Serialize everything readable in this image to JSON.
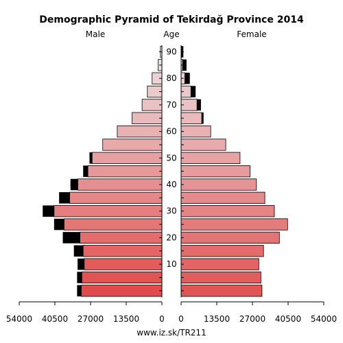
{
  "chart_data": {
    "type": "bar",
    "title": "Demographic Pyramid of Tekirdağ Province 2014",
    "left_label": "Male",
    "center_label": "Age",
    "right_label": "Female",
    "footer": "www.iz.sk/TR211",
    "age_groups": [
      "0-4",
      "5-9",
      "10-14",
      "15-19",
      "20-24",
      "25-29",
      "30-34",
      "35-39",
      "40-44",
      "45-49",
      "50-54",
      "55-59",
      "60-64",
      "65-69",
      "70-74",
      "75-79",
      "80-84",
      "85-89",
      "90+"
    ],
    "age_ticks": [
      "10",
      "20",
      "30",
      "40",
      "50",
      "60",
      "70",
      "80",
      "90"
    ],
    "x_ticks": [
      "54000",
      "40500",
      "27000",
      "13500",
      "0",
      "0",
      "13500",
      "27000",
      "40500",
      "54000"
    ],
    "xlim": [
      0,
      54000
    ],
    "series": [
      {
        "name": "Male",
        "values": [
          30500,
          30300,
          29400,
          29800,
          31000,
          37000,
          40800,
          34900,
          31800,
          28000,
          26400,
          22400,
          16900,
          11300,
          7500,
          5500,
          3700,
          1400,
          550
        ]
      },
      {
        "name": "Female",
        "values": [
          30600,
          30200,
          29400,
          31200,
          37200,
          40300,
          35300,
          31700,
          28500,
          26100,
          22300,
          16900,
          11200,
          7800,
          6000,
          3700,
          1400,
          550,
          150
        ]
      }
    ],
    "excess": {
      "male": [
        1600,
        1800,
        2500,
        3500,
        6500,
        3800,
        4300,
        4000,
        2800,
        1800,
        1000,
        0,
        0,
        0,
        0,
        0,
        0,
        0,
        0
      ],
      "female": [
        0,
        0,
        0,
        0,
        0,
        0,
        0,
        0,
        0,
        0,
        0,
        0,
        0,
        700,
        1500,
        1800,
        1900,
        1500,
        700
      ]
    },
    "colors": {
      "male_young": "#e14b4b",
      "male_old": "#ece4e6",
      "female_young": "#e15555",
      "female_old": "#ece0e4",
      "excess": "#000000"
    }
  }
}
